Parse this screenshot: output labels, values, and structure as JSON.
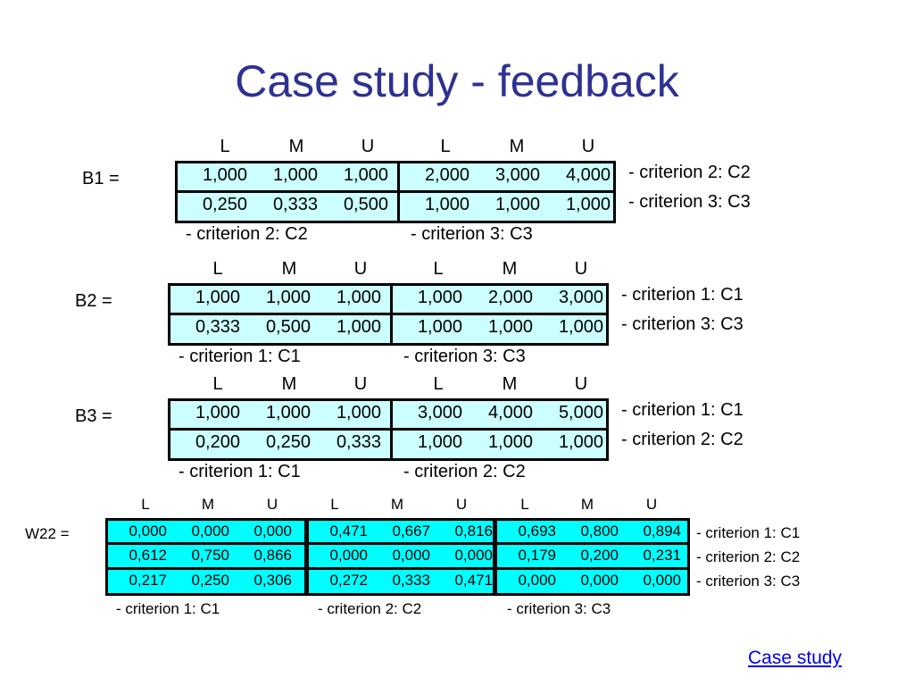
{
  "title": "Case study - feedback",
  "lmu": [
    "L",
    "M",
    "U"
  ],
  "B1": {
    "label": "B1 =",
    "rows": [
      [
        "1,000",
        "1,000",
        "1,000",
        "2,000",
        "3,000",
        "4,000"
      ],
      [
        "0,250",
        "0,333",
        "0,500",
        "1,000",
        "1,000",
        "1,000"
      ]
    ],
    "row_labels": [
      "- criterion 2: C2",
      "- criterion 3: C3"
    ],
    "col_labels": [
      "- criterion 2: C2",
      "- criterion 3: C3"
    ]
  },
  "B2": {
    "label": "B2 =",
    "rows": [
      [
        "1,000",
        "1,000",
        "1,000",
        "1,000",
        "2,000",
        "3,000"
      ],
      [
        "0,333",
        "0,500",
        "1,000",
        "1,000",
        "1,000",
        "1,000"
      ]
    ],
    "row_labels": [
      "- criterion 1: C1",
      "- criterion 3: C3"
    ],
    "col_labels": [
      "- criterion 1: C1",
      "- criterion 3: C3"
    ]
  },
  "B3": {
    "label": "B3 =",
    "rows": [
      [
        "1,000",
        "1,000",
        "1,000",
        "3,000",
        "4,000",
        "5,000"
      ],
      [
        "0,200",
        "0,250",
        "0,333",
        "1,000",
        "1,000",
        "1,000"
      ]
    ],
    "row_labels": [
      "- criterion 1: C1",
      "- criterion 2: C2"
    ],
    "col_labels": [
      "- criterion 1: C1",
      "- criterion 2: C2"
    ]
  },
  "W22": {
    "label": "W22 =",
    "rows": [
      [
        "0,000",
        "0,000",
        "0,000",
        "0,471",
        "0,667",
        "0,816",
        "0,693",
        "0,800",
        "0,894"
      ],
      [
        "0,612",
        "0,750",
        "0,866",
        "0,000",
        "0,000",
        "0,000",
        "0,179",
        "0,200",
        "0,231"
      ],
      [
        "0,217",
        "0,250",
        "0,306",
        "0,272",
        "0,333",
        "0,471",
        "0,000",
        "0,000",
        "0,000"
      ]
    ],
    "row_labels": [
      "- criterion 1: C1",
      "- criterion 2: C2",
      "- criterion 3: C3"
    ],
    "col_labels": [
      "- criterion 1: C1",
      "- criterion 2: C2",
      "- criterion 3: C3"
    ]
  },
  "link": "Case study"
}
